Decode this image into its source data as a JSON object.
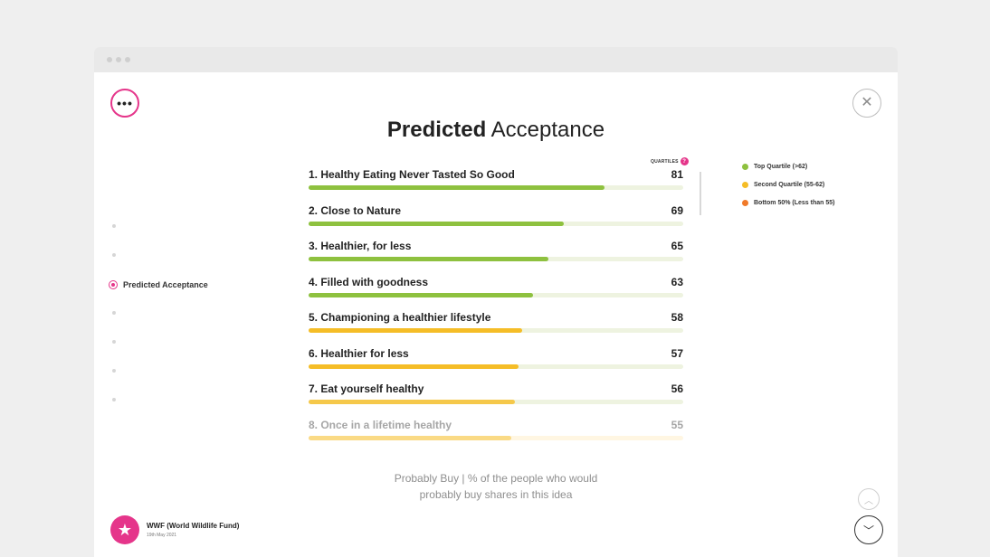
{
  "header": {
    "more_icon": "more-dots-icon",
    "more_glyph": "•••",
    "close_icon": "close-icon",
    "close_glyph": "✕",
    "title_bold": "Predicted",
    "title_rest": " Acceptance"
  },
  "sidebar": {
    "active_label": "Predicted Acceptance"
  },
  "list": {
    "quartiles_label": "QUARTILES",
    "quartiles_badge": "?",
    "rows": [
      {
        "label": "1. Healthy Eating Never Tasted So Good",
        "value": "81",
        "fraction": 0.79,
        "color": "#8ec13f"
      },
      {
        "label": "2. Close to Nature",
        "value": "69",
        "fraction": 0.68,
        "color": "#8ec13f"
      },
      {
        "label": "3. Healthier, for less",
        "value": "65",
        "fraction": 0.64,
        "color": "#8ec13f"
      },
      {
        "label": "4. Filled with goodness",
        "value": "63",
        "fraction": 0.6,
        "color": "#8ec13f"
      },
      {
        "label": "5. Championing a healthier lifestyle",
        "value": "58",
        "fraction": 0.57,
        "color": "#f5bd27"
      },
      {
        "label": "6. Healthier for less",
        "value": "57",
        "fraction": 0.56,
        "color": "#f5bd27"
      },
      {
        "label": "7. Eat yourself healthy",
        "value": "56",
        "fraction": 0.55,
        "color": "#f5c84a"
      },
      {
        "label": "8. Once in a lifetime healthy",
        "value": "55",
        "fraction": 0.54,
        "color": "#f5bd27"
      }
    ]
  },
  "legend": [
    {
      "label": "Top Quartile (>62)",
      "color": "#8ec13f"
    },
    {
      "label": "Second Quartile (55-62)",
      "color": "#f5bd27"
    },
    {
      "label": "Bottom 50% (Less than 55)",
      "color": "#f07a2a"
    }
  ],
  "caption": {
    "line1": "Probably Buy | % of the people who would",
    "line2": "probably buy shares in this idea"
  },
  "brand": {
    "name": "WWF (World Wildlife Fund)",
    "date": "19th May 2021",
    "logo_icon": "star-icon",
    "logo_glyph": "★"
  },
  "nav_buttons": {
    "up_glyph": "︿",
    "down_glyph": "﹀"
  }
}
